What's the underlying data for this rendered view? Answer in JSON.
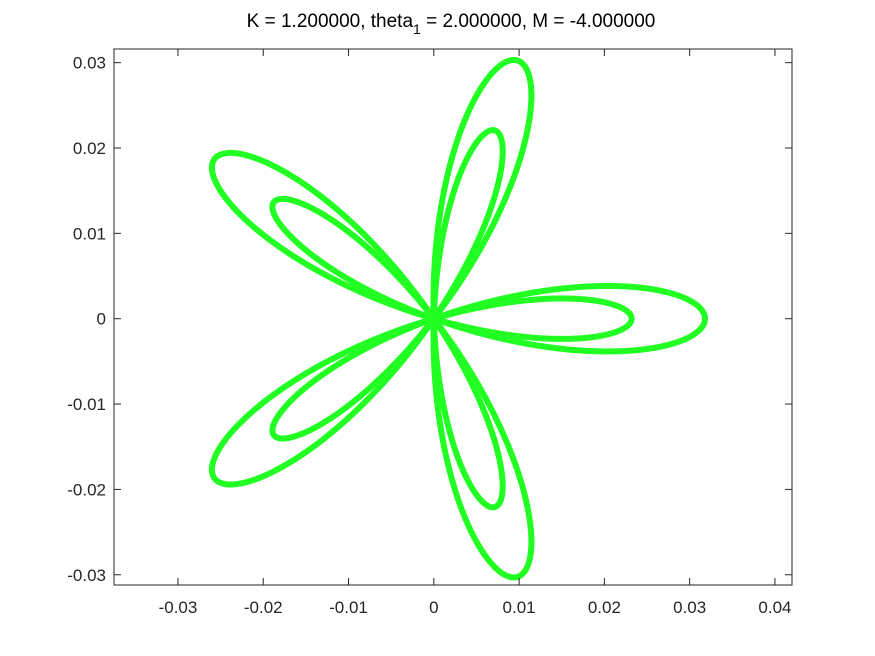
{
  "chart_data": {
    "type": "line",
    "title_parts": {
      "before_sub": "K = 1.200000, theta",
      "sub": "1",
      "after_sub": " = 2.000000,  M = -4.000000"
    },
    "xlabel": "",
    "ylabel": "",
    "xlim": [
      -0.0375,
      0.042
    ],
    "ylim": [
      -0.0312,
      0.0316
    ],
    "x_ticks": [
      -0.03,
      -0.02,
      -0.01,
      0,
      0.01,
      0.02,
      0.03,
      0.04
    ],
    "x_tick_labels": [
      "-0.03",
      "-0.02",
      "-0.01",
      "0",
      "0.01",
      "0.02",
      "0.03",
      "0.04"
    ],
    "y_ticks": [
      -0.03,
      -0.02,
      -0.01,
      0,
      0.01,
      0.02,
      0.03
    ],
    "y_tick_labels": [
      "-0.03",
      "-0.02",
      "-0.01",
      "0",
      "0.01",
      "0.02",
      "0.03"
    ],
    "grid": false,
    "box": true,
    "series": [
      {
        "color": "#22ff22",
        "curve": "rose",
        "petals": 5,
        "amplitude": 0.0275,
        "offset": 0.0043,
        "orientation_deg": 0,
        "samples": 1200
      }
    ]
  }
}
